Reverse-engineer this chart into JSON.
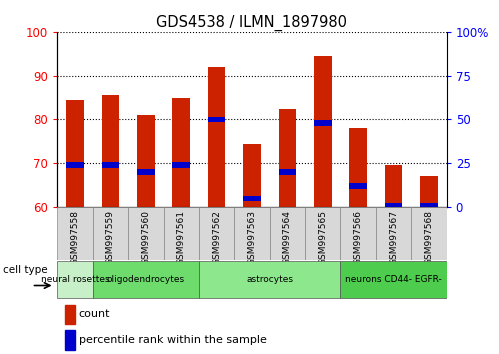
{
  "title": "GDS4538 / ILMN_1897980",
  "samples": [
    "GSM997558",
    "GSM997559",
    "GSM997560",
    "GSM997561",
    "GSM997562",
    "GSM997563",
    "GSM997564",
    "GSM997565",
    "GSM997566",
    "GSM997567",
    "GSM997568"
  ],
  "count_values": [
    84.5,
    85.5,
    81.0,
    85.0,
    92.0,
    74.5,
    82.5,
    94.5,
    78.0,
    69.5,
    67.0
  ],
  "percentile_values": [
    24.0,
    24.0,
    20.0,
    24.0,
    50.0,
    5.0,
    20.0,
    48.0,
    12.0,
    1.0,
    1.0
  ],
  "cell_type_groups": [
    {
      "label": "neural rosettes",
      "start": 0,
      "end": 1,
      "color": "#c8f0c8"
    },
    {
      "label": "oligodendrocytes",
      "start": 1,
      "end": 4,
      "color": "#6ddc6d"
    },
    {
      "label": "astrocytes",
      "start": 4,
      "end": 8,
      "color": "#8de88d"
    },
    {
      "label": "neurons CD44- EGFR-",
      "start": 8,
      "end": 11,
      "color": "#4dcc4d"
    }
  ],
  "ylim_left": [
    60,
    100
  ],
  "ylim_right": [
    0,
    100
  ],
  "right_ticks": [
    0,
    25,
    50,
    75,
    100
  ],
  "right_tick_labels": [
    "0",
    "25",
    "50",
    "75",
    "100%"
  ],
  "left_ticks": [
    60,
    70,
    80,
    90,
    100
  ],
  "bar_color": "#cc2200",
  "percentile_color": "#0000cc",
  "bar_width": 0.5,
  "cell_type_label": "cell type"
}
